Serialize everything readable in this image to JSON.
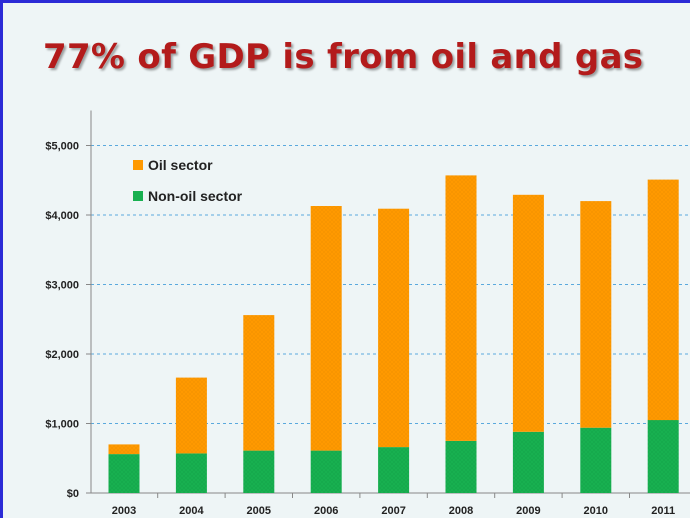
{
  "slide": {
    "title": "77% of GDP is from oil and gas"
  },
  "colors": {
    "oil": "#ff9900",
    "non_oil": "#18b050",
    "title": "#b31b1b",
    "grid": "#5aa9dd",
    "axis": "#888888"
  },
  "chart_data": {
    "type": "bar",
    "stacked": true,
    "title": "",
    "xlabel": "",
    "ylabel": "",
    "categories": [
      "2003",
      "2004",
      "2005",
      "2006",
      "2007",
      "2008",
      "2009",
      "2010",
      "2011"
    ],
    "series": [
      {
        "name": "Non-oil sector",
        "values": [
          560,
          570,
          610,
          610,
          660,
          750,
          880,
          940,
          1050
        ]
      },
      {
        "name": "Oil sector",
        "values": [
          140,
          1090,
          1950,
          3520,
          3430,
          3820,
          3410,
          3260,
          3460
        ]
      }
    ],
    "ylim": [
      0,
      5000
    ],
    "yticks": [
      0,
      1000,
      2000,
      3000,
      4000,
      5000
    ],
    "ytick_labels": [
      "$0",
      "$1,000",
      "$2,000",
      "$3,000",
      "$4,000",
      "$5,000"
    ],
    "grid": true,
    "legend": {
      "position": "top-left",
      "order": [
        "Oil sector",
        "Non-oil sector"
      ]
    }
  }
}
